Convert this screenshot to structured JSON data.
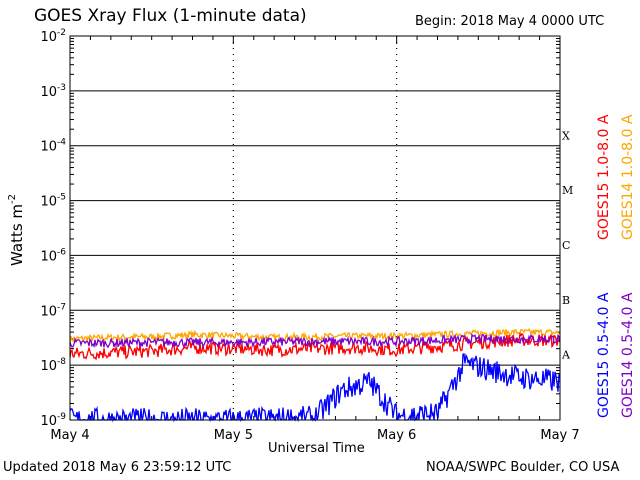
{
  "header": {
    "title": "GOES Xray Flux (1-minute data)",
    "begin": "Begin:  2018 May 4 0000 UTC"
  },
  "footer": {
    "updated": "Updated 2018 May  6 23:59:12 UTC",
    "credit": "NOAA/SWPC Boulder, CO USA"
  },
  "colors": {
    "goes15_long": "#ff0000",
    "goes14_long": "#ffa500",
    "goes15_short": "#0000ff",
    "goes14_short": "#7f00c8"
  },
  "chart_data": {
    "type": "line",
    "title": "GOES Xray Flux (1-minute data)",
    "xlabel": "Universal Time",
    "ylabel": "Watts m",
    "ylabel_exponent": "-2",
    "x_ticks": [
      "May 4",
      "May 5",
      "May 6",
      "May 7"
    ],
    "xlim": [
      "2018-05-04 00:00",
      "2018-05-07 00:00"
    ],
    "y_scale": "log",
    "ylim": [
      1e-09,
      0.01
    ],
    "y_ticks": [
      {
        "value": 0.01,
        "base": "10",
        "exp": "-2"
      },
      {
        "value": 0.001,
        "base": "10",
        "exp": "-3"
      },
      {
        "value": 0.0001,
        "base": "10",
        "exp": "-4"
      },
      {
        "value": 1e-05,
        "base": "10",
        "exp": "-5"
      },
      {
        "value": 1e-06,
        "base": "10",
        "exp": "-6"
      },
      {
        "value": 1e-07,
        "base": "10",
        "exp": "-7"
      },
      {
        "value": 1e-08,
        "base": "10",
        "exp": "-8"
      },
      {
        "value": 1e-09,
        "base": "10",
        "exp": "-9"
      }
    ],
    "flare_classes": [
      {
        "label": "X",
        "value": 0.0001
      },
      {
        "label": "M",
        "value": 1e-05
      },
      {
        "label": "C",
        "value": 1e-06
      },
      {
        "label": "B",
        "value": 1e-07
      },
      {
        "label": "A",
        "value": 1e-08
      }
    ],
    "grid": true,
    "series": [
      {
        "name": "GOES15 1.0-8.0 A",
        "color": "#ff0000",
        "x": [
          "2018-05-04 00:00",
          "2018-05-04 06:00",
          "2018-05-04 12:00",
          "2018-05-04 18:00",
          "2018-05-05 00:00",
          "2018-05-05 06:00",
          "2018-05-05 12:00",
          "2018-05-05 18:00",
          "2018-05-06 00:00",
          "2018-05-06 06:00",
          "2018-05-06 12:00",
          "2018-05-06 18:00",
          "2018-05-07 00:00"
        ],
        "y": [
          1.6e-08,
          1.7e-08,
          1.8e-08,
          2.1e-08,
          2e-08,
          1.9e-08,
          2e-08,
          2.1e-08,
          1.9e-08,
          2.2e-08,
          2.6e-08,
          2.9e-08,
          2.8e-08
        ]
      },
      {
        "name": "GOES14 1.0-8.0 A",
        "color": "#ffa500",
        "x": [
          "2018-05-04 00:00",
          "2018-05-04 06:00",
          "2018-05-04 12:00",
          "2018-05-04 18:00",
          "2018-05-05 00:00",
          "2018-05-05 06:00",
          "2018-05-05 12:00",
          "2018-05-05 18:00",
          "2018-05-06 00:00",
          "2018-05-06 06:00",
          "2018-05-06 12:00",
          "2018-05-06 18:00",
          "2018-05-07 00:00"
        ],
        "y": [
          3e-08,
          3.2e-08,
          3.3e-08,
          3.6e-08,
          3.4e-08,
          3.2e-08,
          3.3e-08,
          3.4e-08,
          3.4e-08,
          3.6e-08,
          3.8e-08,
          4e-08,
          3.9e-08
        ]
      },
      {
        "name": "GOES15 0.5-4.0 A",
        "color": "#0000ff",
        "x": [
          "2018-05-04 00:00",
          "2018-05-04 12:00",
          "2018-05-05 00:00",
          "2018-05-05 12:00",
          "2018-05-05 16:00",
          "2018-05-05 20:00",
          "2018-05-06 00:00",
          "2018-05-06 06:00",
          "2018-05-06 10:00",
          "2018-05-06 14:00",
          "2018-05-06 18:00",
          "2018-05-07 00:00"
        ],
        "y": [
          1e-09,
          1e-09,
          1e-09,
          1.1e-09,
          3.5e-09,
          5e-09,
          1.2e-09,
          1.3e-09,
          1.1e-08,
          8e-09,
          6e-09,
          5e-09
        ]
      },
      {
        "name": "GOES14 0.5-4.0 A",
        "color": "#7f00c8",
        "x": [
          "2018-05-04 00:00",
          "2018-05-04 12:00",
          "2018-05-05 00:00",
          "2018-05-05 12:00",
          "2018-05-06 00:00",
          "2018-05-06 12:00",
          "2018-05-07 00:00"
        ],
        "y": [
          2.5e-08,
          2.6e-08,
          2.6e-08,
          2.7e-08,
          2.7e-08,
          3e-08,
          3e-08
        ]
      }
    ]
  }
}
